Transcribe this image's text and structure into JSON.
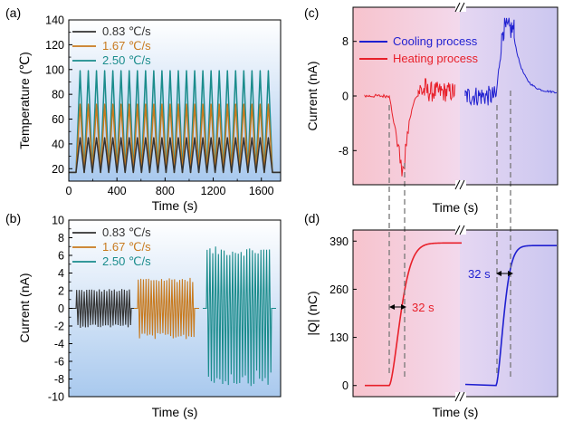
{
  "chart_data": [
    {
      "panel": "(a)",
      "type": "line",
      "xlabel": "Time (s)",
      "ylabel": "Temperature (℃)",
      "xlim": [
        0,
        1760
      ],
      "ylim": [
        10,
        140
      ],
      "xticks": [
        0,
        400,
        800,
        1200,
        1600
      ],
      "yticks": [
        20,
        40,
        60,
        80,
        100,
        120,
        140
      ],
      "background": "gradient blue (top white to light blue bottom)",
      "legend": "top-left",
      "series": [
        {
          "name": "0.83 ℃/s",
          "color": "#333333",
          "min": 17,
          "max": 45,
          "period_s": 68,
          "start_s": 60,
          "end_s": 1705
        },
        {
          "name": "1.67 ℃/s",
          "color": "#c87a1e",
          "min": 17,
          "max": 72,
          "period_s": 68,
          "start_s": 60,
          "end_s": 1705
        },
        {
          "name": "2.50 ℃/s",
          "color": "#1a8c8c",
          "min": 17,
          "max": 99,
          "period_s": 68,
          "start_s": 60,
          "end_s": 1705
        }
      ]
    },
    {
      "panel": "(b)",
      "type": "line",
      "xlabel": "Time (s)",
      "ylabel": "Current (nA)",
      "ylim": [
        -10,
        10
      ],
      "yticks": [
        -10,
        -8,
        -6,
        -4,
        -2,
        0,
        2,
        4,
        6,
        8,
        10
      ],
      "legend": "top-left",
      "series": [
        {
          "name": "0.83 ℃/s",
          "color": "#333333",
          "amplitude_nA": 2.2,
          "segment": 1
        },
        {
          "name": "1.67 ℃/s",
          "color": "#c87a1e",
          "amplitude_nA": 3.5,
          "segment": 2
        },
        {
          "name": "2.50 ℃/s",
          "color": "#1a8c8c",
          "amplitude_nA": 7.0,
          "negative_peak_nA": -8.8,
          "segment": 3
        }
      ]
    },
    {
      "panel": "(c)",
      "type": "line",
      "xlabel": "Time (s)",
      "ylabel": "Current (nA)",
      "ylim": [
        -13,
        13
      ],
      "yticks": [
        -8,
        0,
        8
      ],
      "ytick_labels": [
        "-8",
        "0",
        "8"
      ],
      "axis_break": "//",
      "legend": "top-left",
      "series": [
        {
          "name": "Cooling process",
          "color": "#1f1fd0",
          "baseline_nA": 0,
          "peak_nA": 11.5,
          "decay_to_nA": 0.5
        },
        {
          "name": "Heating process",
          "color": "#e8202a",
          "baseline_nA": 0,
          "min_nA": -11.5,
          "recover_to_nA": 0
        }
      ],
      "background_left": "pink gradient",
      "background_right": "lavender gradient"
    },
    {
      "panel": "(d)",
      "type": "line",
      "xlabel": "Time (s)",
      "ylabel": "|Q| (nC)",
      "ylim": [
        -30,
        420
      ],
      "yticks": [
        0,
        130,
        260,
        390
      ],
      "axis_break": "//",
      "annotations": [
        {
          "text": "32 s",
          "color": "#e8202a"
        },
        {
          "text": "32 s",
          "color": "#1f1fd0"
        }
      ],
      "series": [
        {
          "color": "#e8202a",
          "start_nC": 0,
          "end_nC": 385
        },
        {
          "color": "#1f1fd0",
          "start_nC": 0,
          "end_nC": 378
        }
      ]
    }
  ]
}
